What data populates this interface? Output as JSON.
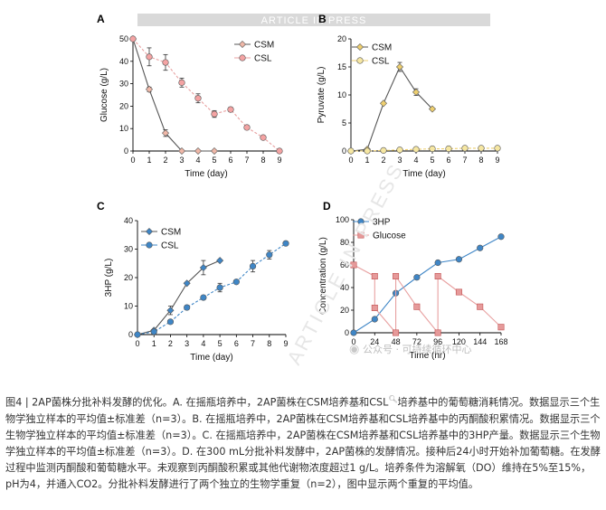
{
  "watermark_banner": "ARTICLE IN PRESS",
  "diagonal_watermark": "ARTICLE IN PRESS",
  "social_watermark": "公众号 · 可持续循环中心",
  "colors": {
    "csm_line": "#555555",
    "csm_fill": "#f0b8a8",
    "csl_fill": "#f4a3a3",
    "pyr_csm": "#eecf6f",
    "pyr_csl": "#f6e7a2",
    "blue": "#3f86c6",
    "glucose_red": "#e69a9a",
    "line_red": "#e8a0a0"
  },
  "chart_data": [
    {
      "panel": "A",
      "type": "line",
      "xlabel": "Time (day)",
      "ylabel": "Glucose (g/L)",
      "xlim": [
        0,
        9
      ],
      "ylim": [
        0,
        50
      ],
      "xticks": [
        "0",
        "1",
        "2",
        "3",
        "4",
        "5",
        "6",
        "7",
        "8",
        "9"
      ],
      "yticks": [
        "0",
        "10",
        "20",
        "30",
        "40",
        "50"
      ],
      "series": [
        {
          "name": "CSM",
          "marker": "diamond",
          "x": [
            0,
            1,
            2,
            3,
            4,
            5
          ],
          "y": [
            50,
            27.5,
            8,
            0,
            0,
            0
          ],
          "err": [
            0,
            1,
            1.5,
            0,
            0,
            0
          ]
        },
        {
          "name": "CSL",
          "marker": "circle",
          "x": [
            0,
            1,
            2,
            3,
            4,
            5,
            6,
            7,
            8,
            9
          ],
          "y": [
            50,
            42,
            39.5,
            30.5,
            23.5,
            16.5,
            18.5,
            10.5,
            6,
            0
          ],
          "err": [
            0,
            4,
            3.5,
            2,
            2,
            1.5,
            1,
            0.5,
            0.5,
            0
          ]
        }
      ]
    },
    {
      "panel": "B",
      "type": "line",
      "xlabel": "Time (day)",
      "ylabel": "Pyruvate (g/L)",
      "xlim": [
        0,
        9
      ],
      "ylim": [
        0,
        20
      ],
      "xticks": [
        "0",
        "1",
        "2",
        "3",
        "4",
        "5",
        "6",
        "7",
        "8",
        "9"
      ],
      "yticks": [
        "0",
        "5",
        "10",
        "15",
        "20"
      ],
      "series": [
        {
          "name": "CSM",
          "marker": "diamond",
          "x": [
            0,
            1,
            2,
            3,
            4,
            5
          ],
          "y": [
            0,
            0.3,
            8.5,
            15,
            10.5,
            7.5
          ],
          "err": [
            0,
            0,
            0,
            0.8,
            0.6,
            0
          ]
        },
        {
          "name": "CSL",
          "marker": "circle",
          "x": [
            0,
            1,
            2,
            3,
            4,
            5,
            6,
            7,
            8,
            9
          ],
          "y": [
            0,
            0,
            0.1,
            0.2,
            0.3,
            0.4,
            0.4,
            0.5,
            0.5,
            0.5
          ],
          "err": [
            0,
            0,
            0,
            0,
            0,
            0,
            0,
            0,
            0,
            0
          ]
        }
      ]
    },
    {
      "panel": "C",
      "type": "line",
      "xlabel": "Time (day)",
      "ylabel": "3HP (g/L)",
      "xlim": [
        0,
        9
      ],
      "ylim": [
        0,
        40
      ],
      "xticks": [
        "0",
        "1",
        "2",
        "3",
        "4",
        "5",
        "6",
        "7",
        "8",
        "9"
      ],
      "yticks": [
        "0",
        "10",
        "20",
        "30",
        "40"
      ],
      "series": [
        {
          "name": "CSM",
          "marker": "diamond",
          "x": [
            0,
            1,
            2,
            3,
            4,
            5
          ],
          "y": [
            0,
            1.5,
            8.5,
            18,
            23.5,
            26
          ],
          "err": [
            0,
            0,
            1.5,
            0,
            2.5,
            0
          ]
        },
        {
          "name": "CSL",
          "marker": "circle",
          "x": [
            0,
            1,
            2,
            3,
            4,
            5,
            6,
            7,
            8,
            9
          ],
          "y": [
            0,
            1,
            4.5,
            9.5,
            13,
            16.5,
            18.5,
            24,
            28,
            32
          ],
          "err": [
            0,
            0,
            0,
            0,
            0,
            1.5,
            0,
            2,
            1.5,
            0
          ]
        }
      ]
    },
    {
      "panel": "D",
      "type": "line",
      "xlabel": "Time (hr)",
      "ylabel": "Concentration (g/L)",
      "xlim": [
        0,
        168
      ],
      "ylim": [
        0,
        100
      ],
      "xticks": [
        "0",
        "24",
        "48",
        "72",
        "96",
        "120",
        "144",
        "168"
      ],
      "yticks": [
        "0",
        "20",
        "40",
        "60",
        "80",
        "100"
      ],
      "series": [
        {
          "name": "3HP",
          "marker": "circle",
          "x": [
            0,
            24,
            48,
            72,
            96,
            120,
            144,
            168
          ],
          "y": [
            0,
            12,
            35,
            49,
            62,
            65,
            75,
            85
          ],
          "err": [
            0,
            0,
            0,
            0,
            0,
            0,
            0,
            0
          ]
        },
        {
          "name": "Glucose",
          "marker": "square",
          "x": [
            0,
            24,
            24,
            48,
            48,
            72,
            96,
            96,
            120,
            144,
            168
          ],
          "y": [
            60,
            50,
            22,
            0,
            50,
            23,
            0,
            50,
            36,
            23,
            5
          ],
          "err": [
            0,
            0,
            0,
            0,
            0,
            0,
            0,
            0,
            0,
            0,
            0
          ]
        }
      ]
    }
  ],
  "caption": {
    "part1": "图4 | 2AP菌株分批补料发酵的优化。A. 在摇瓶培养中，2AP菌株在CSM培养基和CSL",
    "part2": "培养基中的葡萄糖消耗情况。数据显示三个生物学独立样本的平均值±标准差（n=3）。B. 在摇瓶培养中，2AP菌株在CSM培养基和CSL培养基中的丙酮酸积累情况。数据显示三个生物学独立样本的平均值±标准差（n=3）。C. 在摇瓶培养中，2AP菌株在CSM培养基和CSL培养基中的3HP产量。数据显示三个生物学独立样本的平均值±标准差（n=3）。D. 在300 mL分批补料发酵中，2AP菌株的发酵情况。接种后24小时开始补加葡萄糖。在发酵过程中监测丙酮酸和葡萄糖水平。未观察到丙酮酸积累或其他代谢物浓度超过1 g/L。培养条件为溶解氧（DO）维持在5%至15%，pH为4，并通入CO2。分批补料发酵进行了两个独立的生物学重复（n=2），图中显示两个重复的平均值。"
  }
}
